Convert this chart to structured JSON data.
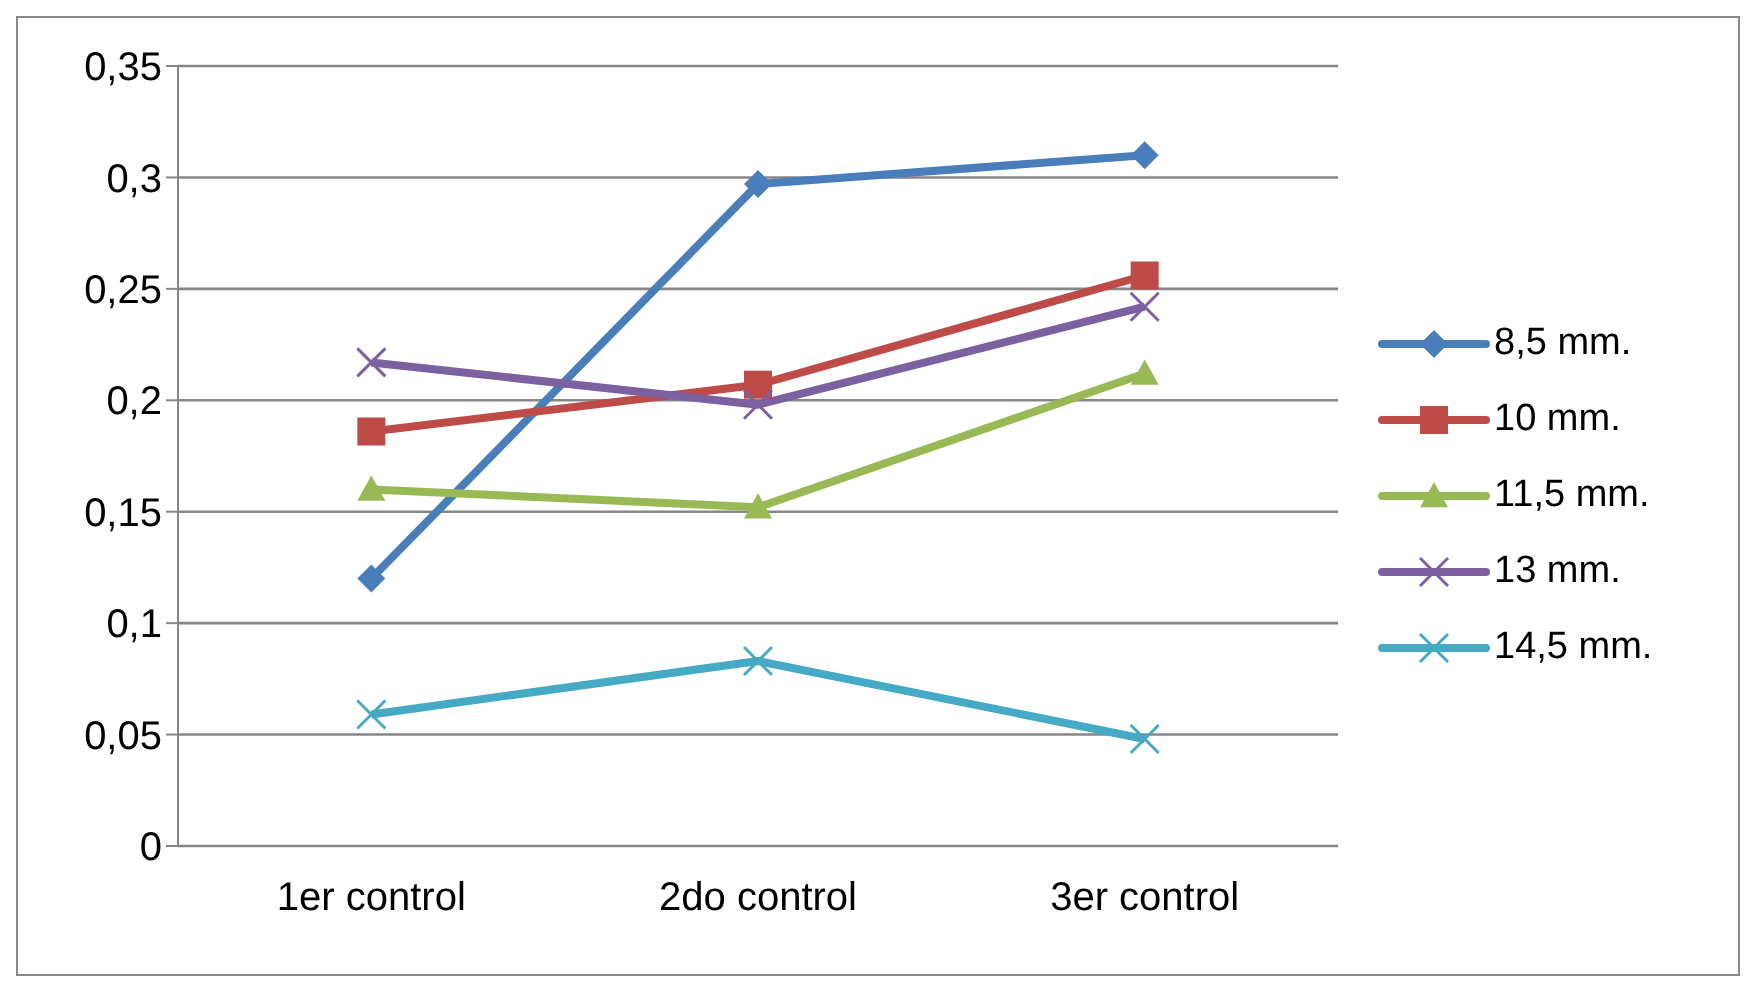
{
  "chart_data": {
    "type": "line",
    "categories": [
      "1er control",
      "2do control",
      "3er control"
    ],
    "series": [
      {
        "name": "8,5 mm.",
        "color": "#4a7ebb",
        "marker": "diamond",
        "values": [
          0.12,
          0.297,
          0.31
        ]
      },
      {
        "name": "10 mm.",
        "color": "#be4b48",
        "marker": "square",
        "values": [
          0.186,
          0.207,
          0.256
        ]
      },
      {
        "name": "11,5 mm.",
        "color": "#98b954",
        "marker": "triangle",
        "values": [
          0.16,
          0.152,
          0.212
        ]
      },
      {
        "name": "13 mm.",
        "color": "#7d60a0",
        "marker": "cross",
        "values": [
          0.217,
          0.198,
          0.242
        ]
      },
      {
        "name": "14,5 mm.",
        "color": "#46aac5",
        "marker": "cross",
        "values": [
          0.059,
          0.083,
          0.048
        ]
      }
    ],
    "ylim": [
      0,
      0.35
    ],
    "yticks": [
      {
        "value": 0,
        "label": "0"
      },
      {
        "value": 0.05,
        "label": "0,05"
      },
      {
        "value": 0.1,
        "label": "0,1"
      },
      {
        "value": 0.15,
        "label": "0,15"
      },
      {
        "value": 0.2,
        "label": "0,2"
      },
      {
        "value": 0.25,
        "label": "0,25"
      },
      {
        "value": 0.3,
        "label": "0,3"
      },
      {
        "value": 0.35,
        "label": "0,35"
      }
    ],
    "grid": "y",
    "legend": "right",
    "line_style": "solid"
  }
}
